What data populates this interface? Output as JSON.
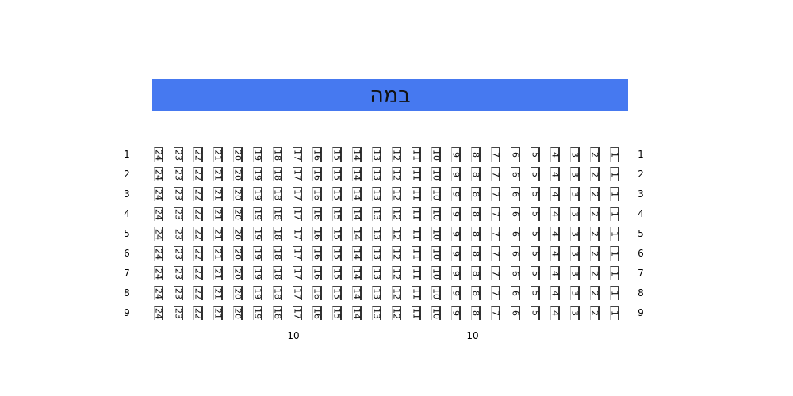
{
  "stage": {
    "label": "במה",
    "color": "#4679f0"
  },
  "rows": [
    "1",
    "2",
    "3",
    "4",
    "5",
    "6",
    "7",
    "8",
    "9"
  ],
  "seats": [
    "24",
    "23",
    "22",
    "21",
    "20",
    "19",
    "18",
    "17",
    "16",
    "15",
    "14",
    "13",
    "12",
    "11",
    "10",
    "9",
    "8",
    "7",
    "6",
    "5",
    "4",
    "3",
    "2",
    "1"
  ],
  "footer_labels": [
    "10",
    "10"
  ]
}
